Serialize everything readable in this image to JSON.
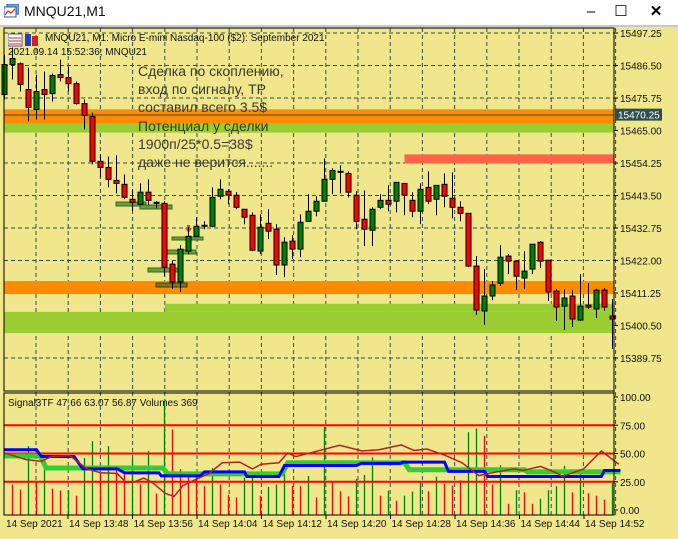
{
  "window": {
    "title": "MNQU21,M1",
    "minimize": "‒",
    "maximize": "☐",
    "close": "✕"
  },
  "chart_header": {
    "symbol_line": "MNQU21, M1:  Micro E-mini Nasdaq-100 ($2): September 2021",
    "timestamp_line": "2021.09.14 15:52:36; MNQU21"
  },
  "annotation": [
    "Сделка по скоплению,",
    "вход по сигналу, TP",
    "составил всего 3.5$",
    "Потенциал у сделки",
    "1900п/25*0.5=38$",
    "даже не верится......."
  ],
  "price_axis": {
    "labels": [
      "15497.25",
      "15486.50",
      "15475.75",
      "15465.00",
      "15454.25",
      "15443.50",
      "15432.75",
      "15422.00",
      "15411.25",
      "15400.50",
      "15389.75"
    ],
    "max": 15497.25,
    "step": 10.75,
    "current_price": "15470.25"
  },
  "zones": [
    {
      "name": "orange-upper-zone",
      "from": 15467.3,
      "to": 15472.0,
      "color": "#FF8C00"
    },
    {
      "name": "green-upper-zone",
      "from": 15464.3,
      "to": 15467.3,
      "color": "#9ACD32"
    },
    {
      "name": "red-resistance-zone",
      "from": 15454.1,
      "to": 15457.1,
      "color": "#FF6347",
      "start_index": 50
    },
    {
      "name": "orange-lower-zone",
      "from": 15410.9,
      "to": 15415.2,
      "color": "#FF8C00"
    },
    {
      "name": "green-lower-zone",
      "from": 15398.0,
      "to": 15405.0,
      "color": "#9ACD32"
    }
  ],
  "candles": [
    [
      15476.9,
      15490.1,
      15475.25,
      15486.8
    ],
    [
      15486.8,
      15492.4,
      15481.85,
      15488.8
    ],
    [
      15487.1,
      15487.5,
      15477.9,
      15480.2
    ],
    [
      15478.55,
      15485.8,
      15468.0,
      15472.6
    ],
    [
      15471.95,
      15483.5,
      15468.65,
      15477.9
    ],
    [
      15478.55,
      15484.5,
      15468.65,
      15476.9
    ],
    [
      15477.2,
      15483.85,
      15474.6,
      15483.2
    ],
    [
      15483.5,
      15488.45,
      15481.2,
      15482.5
    ],
    [
      15482.5,
      15486.1,
      15477.9,
      15480.5
    ],
    [
      15480.5,
      15481.2,
      15473.6,
      15473.9
    ],
    [
      15473.9,
      15475.25,
      15465.35,
      15469.95
    ],
    [
      15469.6,
      15470.9,
      15453.8,
      15454.8
    ],
    [
      15454.8,
      15457.1,
      15449.5,
      15452.8
    ],
    [
      15452.8,
      15456.4,
      15446.2,
      15448.85
    ],
    [
      15448.5,
      15456.8,
      15444.2,
      15447.5
    ],
    [
      15447.2,
      15450.5,
      15442.25,
      15442.9
    ],
    [
      15442.25,
      15445.55,
      15438.3,
      15441.25
    ],
    [
      15440.6,
      15447.5,
      15440.3,
      15444.6
    ],
    [
      15444.6,
      15448.85,
      15440.3,
      15441.9
    ],
    [
      15441.25,
      15441.6,
      15439.3,
      15440.9
    ],
    [
      15440.9,
      15441.6,
      15416.8,
      15419.8
    ],
    [
      15420.8,
      15421.8,
      15412.55,
      15414.9
    ],
    [
      15414.9,
      15427.1,
      15411.6,
      15425.75
    ],
    [
      15425.1,
      15433.0,
      15424.1,
      15430.0
    ],
    [
      15430.0,
      15436.3,
      15430.0,
      15433.3
    ],
    [
      15433.65,
      15435.0,
      15432.35,
      15433.65
    ],
    [
      15433.3,
      15446.2,
      15433.0,
      15442.9
    ],
    [
      15443.25,
      15448.85,
      15442.25,
      15445.55
    ],
    [
      15444.9,
      15445.55,
      15440.6,
      15443.6
    ],
    [
      15443.6,
      15444.6,
      15438.95,
      15439.6
    ],
    [
      15438.95,
      15438.95,
      15434.0,
      15436.3
    ],
    [
      15436.95,
      15437.9,
      15425.1,
      15425.4
    ],
    [
      15425.1,
      15437.3,
      15424.1,
      15433.0
    ],
    [
      15434.3,
      15438.95,
      15429.05,
      15431.7
    ],
    [
      15432.35,
      15434.0,
      15417.2,
      15420.5
    ],
    [
      15420.5,
      15429.7,
      15416.5,
      15428.05
    ],
    [
      15428.4,
      15430.35,
      15422.45,
      15425.75
    ],
    [
      15425.75,
      15437.3,
      15423.1,
      15434.65
    ],
    [
      15434.95,
      15443.9,
      15434.95,
      15438.3
    ],
    [
      15438.3,
      15443.25,
      15436.65,
      15441.6
    ],
    [
      15441.6,
      15455.8,
      15441.6,
      15448.85
    ],
    [
      15448.85,
      15452.5,
      15443.9,
      15451.8
    ],
    [
      15451.5,
      15453.5,
      15444.2,
      15451.5
    ],
    [
      15450.8,
      15451.5,
      15442.9,
      15444.6
    ],
    [
      15443.6,
      15444.9,
      15432.35,
      15434.95
    ],
    [
      15435.65,
      15445.2,
      15426.75,
      15432.35
    ],
    [
      15432.0,
      15439.6,
      15426.75,
      15438.95
    ],
    [
      15439.6,
      15443.9,
      15438.95,
      15441.9
    ],
    [
      15441.9,
      15446.85,
      15438.3,
      15440.6
    ],
    [
      15441.6,
      15447.85,
      15437.9,
      15447.85
    ],
    [
      15447.5,
      15447.5,
      15436.95,
      15443.6
    ],
    [
      15441.9,
      15444.6,
      15436.3,
      15438.3
    ],
    [
      15438.3,
      15447.5,
      15434.0,
      15445.55
    ],
    [
      15446.2,
      15451.5,
      15440.6,
      15441.6
    ],
    [
      15442.25,
      15446.85,
      15436.95,
      15446.85
    ],
    [
      15447.2,
      15450.8,
      15439.6,
      15443.25
    ],
    [
      15442.6,
      15451.15,
      15435.95,
      15439.6
    ],
    [
      15439.6,
      15441.6,
      15434.95,
      15437.6
    ],
    [
      15437.6,
      15437.6,
      15419.8,
      15420.15
    ],
    [
      15420.15,
      15423.45,
      15404.0,
      15405.6
    ],
    [
      15405.3,
      15419.15,
      15400.7,
      15410.25
    ],
    [
      15410.25,
      15415.2,
      15408.9,
      15413.9
    ],
    [
      15414.5,
      15427.1,
      15413.55,
      15423.1
    ],
    [
      15423.45,
      15424.1,
      15417.5,
      15421.8
    ],
    [
      15421.8,
      15421.8,
      15412.2,
      15416.8
    ],
    [
      15416.2,
      15425.1,
      15412.55,
      15418.5
    ],
    [
      15419.15,
      15427.4,
      15417.5,
      15427.4
    ],
    [
      15428.05,
      15428.4,
      15419.5,
      15421.8
    ],
    [
      15422.1,
      15422.1,
      15408.6,
      15411.6
    ],
    [
      15411.9,
      15412.55,
      15402.0,
      15406.6
    ],
    [
      15406.9,
      15412.55,
      15399.0,
      15409.6
    ],
    [
      15410.25,
      15412.2,
      15400.0,
      15402.65
    ],
    [
      15402.3,
      15417.5,
      15402.0,
      15406.9
    ],
    [
      15407.25,
      15414.5,
      15405.95,
      15406.6
    ],
    [
      15405.95,
      15412.55,
      15403.0,
      15412.2
    ],
    [
      15412.2,
      15412.9,
      15405.3,
      15406.6
    ],
    [
      15403.65,
      15409.25,
      15392.75,
      15402.65
    ]
  ],
  "indicator": {
    "label": "Signal3TF 47.66 63.07 56.87 Volumes 369",
    "axis_labels": [
      "100.00",
      "75.00",
      "50.00",
      "25.00",
      "0.00"
    ],
    "levels": [
      75,
      50,
      25
    ],
    "blue_line": [
      [
        0,
        53.3
      ],
      [
        4,
        53.3
      ],
      [
        4.6,
        47.3
      ],
      [
        8.7,
        47.3
      ],
      [
        9.8,
        36.4
      ],
      [
        14.1,
        36.4
      ],
      [
        15,
        32.9
      ],
      [
        19.3,
        32.9
      ],
      [
        19.6,
        30.2
      ],
      [
        24.5,
        30.2
      ],
      [
        25,
        33.7
      ],
      [
        30,
        33.7
      ],
      [
        30.3,
        29.6
      ],
      [
        34.3,
        29.6
      ],
      [
        35,
        39.4
      ],
      [
        44,
        39.4
      ],
      [
        44.6,
        41.3
      ],
      [
        49.5,
        41.3
      ],
      [
        49.8,
        42.4
      ],
      [
        55,
        42.4
      ],
      [
        55.5,
        34.2
      ],
      [
        60,
        34.2
      ],
      [
        60.4,
        29.6
      ],
      [
        74.6,
        29.6
      ],
      [
        75,
        35
      ],
      [
        77,
        35
      ]
    ],
    "green_line": [
      [
        0,
        47.8
      ],
      [
        4.5,
        47.8
      ],
      [
        5.2,
        37.2
      ],
      [
        19.8,
        37.2
      ],
      [
        20.4,
        32
      ],
      [
        34.7,
        32
      ],
      [
        35.4,
        41.8
      ],
      [
        50,
        41.8
      ],
      [
        50.6,
        35.6
      ],
      [
        65,
        35.6
      ],
      [
        65.4,
        33.7
      ],
      [
        77,
        33.7
      ]
    ],
    "red_line": [
      [
        0,
        50.5
      ],
      [
        2.7,
        44.6
      ],
      [
        4.6,
        43.2
      ],
      [
        5.9,
        47.3
      ],
      [
        8.2,
        48
      ],
      [
        10.3,
        36.4
      ],
      [
        12,
        33
      ],
      [
        14.1,
        32.3
      ],
      [
        15.2,
        24.2
      ],
      [
        16.3,
        25
      ],
      [
        17.4,
        28.3
      ],
      [
        18.5,
        24.2
      ],
      [
        20.1,
        14.7
      ],
      [
        21.2,
        12
      ],
      [
        22.3,
        21.5
      ],
      [
        23.9,
        27
      ],
      [
        25.6,
        32.3
      ],
      [
        27.2,
        41.8
      ],
      [
        29.4,
        42.4
      ],
      [
        31,
        36.4
      ],
      [
        32.1,
        40.5
      ],
      [
        34.3,
        41.8
      ],
      [
        35.4,
        50.5
      ],
      [
        36.4,
        47.3
      ],
      [
        38.7,
        51.4
      ],
      [
        41.9,
        57.3
      ],
      [
        44.7,
        52.2
      ],
      [
        46.8,
        53.3
      ],
      [
        49.6,
        57.6
      ],
      [
        51.2,
        52.7
      ],
      [
        52.8,
        54
      ],
      [
        55,
        48.6
      ],
      [
        57.2,
        41.8
      ],
      [
        59.3,
        30.4
      ],
      [
        61.5,
        33.7
      ],
      [
        63.7,
        36.4
      ],
      [
        64.8,
        35
      ],
      [
        67,
        38.6
      ],
      [
        69.2,
        32.3
      ],
      [
        69.7,
        29.6
      ],
      [
        72.4,
        36.4
      ],
      [
        74.6,
        52.2
      ],
      [
        76.8,
        40.5
      ]
    ],
    "volumes": [
      0,
      351,
      293,
      792,
      390,
      527,
      304,
      281,
      281,
      222,
      655,
      850,
      488,
      792,
      527,
      488,
      651,
      351,
      737,
      246,
      1299,
      983,
      527,
      468,
      468,
      332,
      538,
      351,
      234,
      203,
      429,
      429,
      222,
      324,
      351,
      468,
      335,
      332,
      449,
      203,
      1014,
      390,
      273,
      215,
      417,
      460,
      663,
      222,
      281,
      164,
      222,
      269,
      371,
      273,
      441,
      359,
      339,
      398,
      952,
      995,
      909,
      351,
      573,
      129,
      285,
      261,
      129,
      187,
      285,
      332,
      566,
      261,
      519,
      250,
      222,
      176,
      369
    ],
    "volume_colors": "rrrgrgrrgrggrgrrgrgrgrrrrrgrrrggrgggrrgrgrrrgggrgrgggrgrrrggrrgrgrrggggrgrrrg"
  },
  "colors": {
    "background": "#F0E68C",
    "bull": "#008000",
    "bear": "#FF0000",
    "grid": "#2F4F4F",
    "blue": "#0000FF",
    "green": "#32CD32",
    "osc": "#B22222",
    "level": "#FF0000"
  },
  "time_axis": [
    "14 Sep 2021",
    "14 Sep 13:48",
    "14 Sep 13:56",
    "14 Sep 14:04",
    "14 Sep 14:12",
    "14 Sep 14:20",
    "14 Sep 14:28",
    "14 Sep 14:36",
    "14 Sep 14:44",
    "14 Sep 14:52"
  ]
}
